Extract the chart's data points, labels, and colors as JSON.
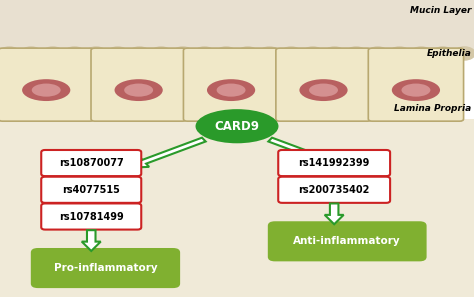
{
  "bg_color": "#ffffff",
  "mucin_bg_color": "#e8e0d0",
  "mucin_bump_color": "#d4c8a8",
  "cell_body_color": "#f0e8c8",
  "cell_border_color": "#b8a870",
  "cell_top_color": "#c8b878",
  "nucleus_outer_color": "#b86060",
  "nucleus_inner_color": "#d49090",
  "lamina_bg_color": "#f0ead8",
  "card9_color": "#2a9a2a",
  "card9_text": "CARD9",
  "card9_text_color": "#ffffff",
  "arrow_color": "#2a9a2a",
  "snp_left": [
    "rs10870077",
    "rs4077515",
    "rs10781499"
  ],
  "snp_right": [
    "rs141992399",
    "rs200735402"
  ],
  "snp_border_color": "#cc2222",
  "snp_bg_color": "#ffffff",
  "snp_text_color": "#000000",
  "pro_box_color": "#80b030",
  "anti_box_color": "#80b030",
  "pro_label": "Pro-inflammatory",
  "anti_label": "Anti-inflammatory",
  "box_label_color": "#ffffff",
  "label_mucin": "Mucin Layer",
  "label_epithelia": "Epithelia",
  "label_lamina": "Lamina Propria",
  "label_color": "#000000"
}
